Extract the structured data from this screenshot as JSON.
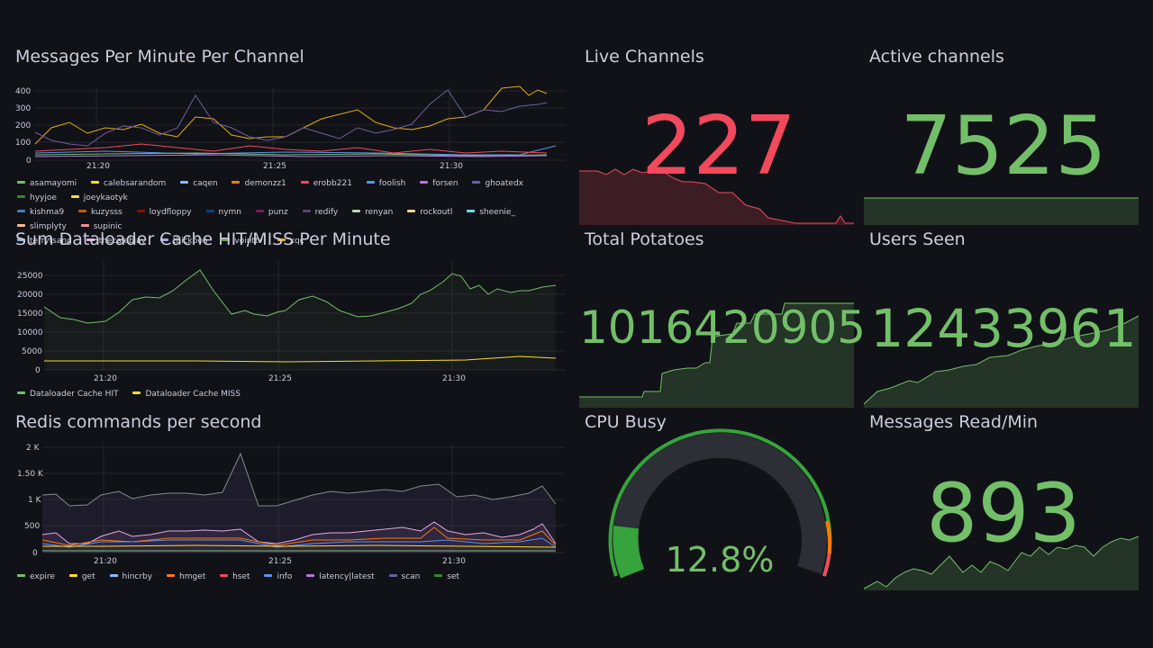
{
  "colors": {
    "bg": "#111217",
    "grid": "#24262d",
    "text": "#ccccdc",
    "green": "#73bf69",
    "red": "#f2495c"
  },
  "panels": {
    "messages": {
      "title": "Messages Per Minute Per Channel",
      "y_ticks": [
        "400",
        "300",
        "200",
        "100",
        "0"
      ],
      "x_ticks": [
        "21:20",
        "21:25",
        "21:30"
      ],
      "legend": [
        {
          "name": "asamayomi",
          "color": "#73bf69"
        },
        {
          "name": "calebsarandom",
          "color": "#fade2a"
        },
        {
          "name": "caqen",
          "color": "#8ab8ff"
        },
        {
          "name": "demonzz1",
          "color": "#ff780a"
        },
        {
          "name": "erobb221",
          "color": "#f2495c"
        },
        {
          "name": "foolish",
          "color": "#5794f2"
        },
        {
          "name": "forsen",
          "color": "#b877d9"
        },
        {
          "name": "ghoatedx",
          "color": "#705da0"
        },
        {
          "name": "hyyjoe",
          "color": "#37872d"
        },
        {
          "name": "joeykaotyk",
          "color": "#fade2a"
        },
        {
          "name": "kishma9",
          "color": "#447ebc"
        },
        {
          "name": "kuzysss",
          "color": "#c15c17"
        },
        {
          "name": "loydfloppy",
          "color": "#890f02"
        },
        {
          "name": "nymn",
          "color": "#0a437c"
        },
        {
          "name": "punz",
          "color": "#6d1f62"
        },
        {
          "name": "redify",
          "color": "#584477"
        },
        {
          "name": "renyan",
          "color": "#b7dbab"
        },
        {
          "name": "rockoutl",
          "color": "#f4d598"
        },
        {
          "name": "sheenie_",
          "color": "#70dbed"
        },
        {
          "name": "slimplyty",
          "color": "#f9ba8f"
        },
        {
          "name": "supinic",
          "color": "#f29191"
        },
        {
          "name": "terrytsang",
          "color": "#82b5d8"
        },
        {
          "name": "thecalebjay",
          "color": "#e5a8e2"
        },
        {
          "name": "thickpoo",
          "color": "#aea2e0"
        },
        {
          "name": "vointtv",
          "color": "#629e51"
        },
        {
          "name": "xqc",
          "color": "#e5ac0e"
        }
      ]
    },
    "dataloader": {
      "title": "Sum Dataloader Cache HIT/MISS Per Minute",
      "y_ticks": [
        "25000",
        "20000",
        "15000",
        "10000",
        "5000",
        "0"
      ],
      "x_ticks": [
        "21:20",
        "21:25",
        "21:30"
      ],
      "legend": [
        {
          "name": "Dataloader Cache HIT",
          "color": "#73bf69"
        },
        {
          "name": "Dataloader Cache MISS",
          "color": "#fade2a"
        }
      ]
    },
    "redis": {
      "title": "Redis commands per second",
      "y_ticks": [
        "2 K",
        "1.50 K",
        "1 K",
        "500",
        "0"
      ],
      "x_ticks": [
        "21:20",
        "21:25",
        "21:30"
      ],
      "legend": [
        {
          "name": "expire",
          "color": "#73bf69"
        },
        {
          "name": "get",
          "color": "#fade2a"
        },
        {
          "name": "hincrby",
          "color": "#8ab8ff"
        },
        {
          "name": "hmget",
          "color": "#ff780a"
        },
        {
          "name": "hset",
          "color": "#f2495c"
        },
        {
          "name": "info",
          "color": "#5794f2"
        },
        {
          "name": "latency|latest",
          "color": "#b877d9"
        },
        {
          "name": "scan",
          "color": "#705da0"
        },
        {
          "name": "set",
          "color": "#37872d"
        }
      ]
    },
    "live_channels": {
      "title": "Live Channels",
      "value": "227",
      "color": "#f2495c"
    },
    "active_channels": {
      "title": "Active channels",
      "value": "7525",
      "color": "#73bf69"
    },
    "total_potatoes": {
      "title": "Total Potatoes",
      "value": "1016420905",
      "color": "#73bf69"
    },
    "users_seen": {
      "title": "Users Seen",
      "value": "12433961",
      "color": "#73bf69"
    },
    "cpu_busy": {
      "title": "CPU Busy",
      "value": "12.8%",
      "percent": 12.8,
      "color": "#73bf69"
    },
    "messages_read": {
      "title": "Messages Read/Min",
      "value": "893",
      "color": "#73bf69"
    }
  }
}
